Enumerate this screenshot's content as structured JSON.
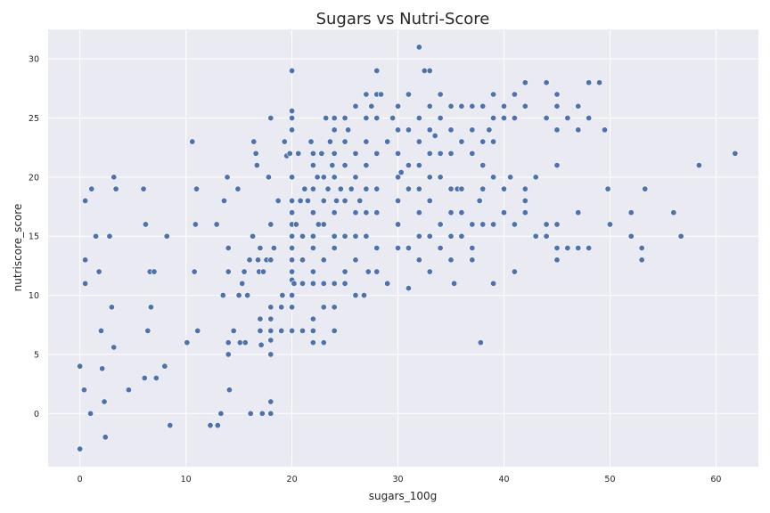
{
  "chart_data": {
    "type": "scatter",
    "title": "Sugars vs Nutri-Score",
    "xlabel": "sugars_100g",
    "ylabel": "nutriscore_score",
    "xlim": [
      -3,
      64
    ],
    "ylim": [
      -4.5,
      32.5
    ],
    "xticks": [
      0,
      10,
      20,
      30,
      40,
      50,
      60
    ],
    "yticks": [
      0,
      5,
      10,
      15,
      20,
      25,
      30
    ],
    "grid": true,
    "style": {
      "background": "#eaeaf2",
      "marker_color": "#4c72b0"
    },
    "series": [
      {
        "points": [
          [
            0,
            -3
          ],
          [
            0,
            4
          ],
          [
            0.4,
            2
          ],
          [
            0.5,
            18
          ],
          [
            0.5,
            13
          ],
          [
            0.5,
            11
          ],
          [
            1,
            0
          ],
          [
            1.1,
            19
          ],
          [
            1.5,
            15
          ],
          [
            1.8,
            12
          ],
          [
            2,
            7
          ],
          [
            2.1,
            3.8
          ],
          [
            2.3,
            1
          ],
          [
            2.4,
            -2
          ],
          [
            2.8,
            15
          ],
          [
            3,
            9
          ],
          [
            3.2,
            20
          ],
          [
            3.2,
            5.6
          ],
          [
            3.4,
            19
          ],
          [
            4.6,
            2
          ],
          [
            6,
            19
          ],
          [
            6.1,
            3
          ],
          [
            6.2,
            16
          ],
          [
            6.4,
            7
          ],
          [
            6.6,
            12
          ],
          [
            6.7,
            9
          ],
          [
            7,
            12
          ],
          [
            7.2,
            3
          ],
          [
            8,
            4
          ],
          [
            8.2,
            15
          ],
          [
            8.5,
            -1
          ],
          [
            10.1,
            6
          ],
          [
            10.6,
            23
          ],
          [
            10.8,
            12
          ],
          [
            10.9,
            16
          ],
          [
            11,
            19
          ],
          [
            11.1,
            7
          ],
          [
            12.3,
            -1
          ],
          [
            12.9,
            16
          ],
          [
            13,
            -1
          ],
          [
            13.3,
            0
          ],
          [
            13.5,
            10
          ],
          [
            13.6,
            18
          ],
          [
            13.9,
            20
          ],
          [
            14,
            14
          ],
          [
            14,
            12
          ],
          [
            14,
            6
          ],
          [
            14,
            5
          ],
          [
            14.1,
            2
          ],
          [
            14.5,
            7
          ],
          [
            14.9,
            19
          ],
          [
            15,
            10
          ],
          [
            15.1,
            6
          ],
          [
            15.3,
            11
          ],
          [
            15.5,
            12
          ],
          [
            15.6,
            6
          ],
          [
            15.8,
            10
          ],
          [
            16,
            13
          ],
          [
            16.1,
            0
          ],
          [
            16.3,
            15
          ],
          [
            16.4,
            23
          ],
          [
            16.6,
            22
          ],
          [
            16.7,
            21
          ],
          [
            16.8,
            13
          ],
          [
            16.9,
            12
          ],
          [
            17,
            14
          ],
          [
            17,
            8
          ],
          [
            17,
            7
          ],
          [
            17.1,
            5.8
          ],
          [
            17.2,
            0
          ],
          [
            17.3,
            12
          ],
          [
            17.6,
            13
          ],
          [
            17.8,
            20
          ],
          [
            18,
            25
          ],
          [
            18,
            16
          ],
          [
            18,
            13
          ],
          [
            18,
            9
          ],
          [
            18,
            8
          ],
          [
            18,
            7
          ],
          [
            18,
            6.2
          ],
          [
            18,
            5
          ],
          [
            18,
            1
          ],
          [
            18,
            0
          ],
          [
            18.3,
            14
          ],
          [
            18.7,
            18
          ],
          [
            19,
            9
          ],
          [
            19,
            7
          ],
          [
            19.1,
            10
          ],
          [
            19.3,
            23
          ],
          [
            19.5,
            21.8
          ],
          [
            19.8,
            22
          ],
          [
            20,
            29
          ],
          [
            20,
            25.6
          ],
          [
            20,
            25
          ],
          [
            20,
            24
          ],
          [
            20,
            20
          ],
          [
            20,
            18
          ],
          [
            20,
            17
          ],
          [
            20,
            16
          ],
          [
            20,
            15
          ],
          [
            20,
            14
          ],
          [
            20,
            13
          ],
          [
            20,
            12
          ],
          [
            20,
            11.3
          ],
          [
            20,
            10
          ],
          [
            20,
            9
          ],
          [
            20,
            7
          ],
          [
            20.2,
            11
          ],
          [
            20.4,
            16
          ],
          [
            20.6,
            22
          ],
          [
            20.8,
            18
          ],
          [
            21,
            15
          ],
          [
            21,
            13
          ],
          [
            21,
            11
          ],
          [
            21,
            7
          ],
          [
            21.2,
            19
          ],
          [
            21.5,
            18
          ],
          [
            21.8,
            23
          ],
          [
            22,
            22
          ],
          [
            22,
            21
          ],
          [
            22,
            19
          ],
          [
            22,
            17
          ],
          [
            22,
            15
          ],
          [
            22,
            14
          ],
          [
            22,
            12
          ],
          [
            22,
            11
          ],
          [
            22,
            8
          ],
          [
            22,
            7
          ],
          [
            22,
            6
          ],
          [
            22.4,
            20
          ],
          [
            22.5,
            16
          ],
          [
            22.8,
            22
          ],
          [
            23,
            20
          ],
          [
            23,
            18
          ],
          [
            23,
            16
          ],
          [
            23,
            13
          ],
          [
            23,
            11
          ],
          [
            23,
            9
          ],
          [
            23,
            6
          ],
          [
            23.2,
            25
          ],
          [
            23.4,
            19
          ],
          [
            23.6,
            23
          ],
          [
            23.8,
            21
          ],
          [
            24,
            25
          ],
          [
            24,
            24
          ],
          [
            24,
            22
          ],
          [
            24,
            20
          ],
          [
            24,
            17
          ],
          [
            24,
            15
          ],
          [
            24,
            14
          ],
          [
            24,
            11
          ],
          [
            24,
            9
          ],
          [
            24,
            7
          ],
          [
            24.2,
            18
          ],
          [
            24.6,
            19
          ],
          [
            25,
            25
          ],
          [
            25,
            23
          ],
          [
            25,
            21
          ],
          [
            25,
            18
          ],
          [
            25,
            15
          ],
          [
            25,
            12
          ],
          [
            25,
            11
          ],
          [
            25.3,
            24
          ],
          [
            25.6,
            19
          ],
          [
            26,
            26
          ],
          [
            26,
            22
          ],
          [
            26,
            20
          ],
          [
            26,
            17
          ],
          [
            26,
            15
          ],
          [
            26,
            13
          ],
          [
            26,
            10
          ],
          [
            26.4,
            18
          ],
          [
            26.8,
            10
          ],
          [
            27,
            27
          ],
          [
            27,
            25
          ],
          [
            27,
            23
          ],
          [
            27,
            21
          ],
          [
            27,
            19
          ],
          [
            27,
            17
          ],
          [
            27,
            15
          ],
          [
            27.2,
            12
          ],
          [
            27.5,
            26
          ],
          [
            28,
            29
          ],
          [
            28,
            27
          ],
          [
            28,
            25
          ],
          [
            28,
            22
          ],
          [
            28,
            19
          ],
          [
            28,
            17
          ],
          [
            28,
            14
          ],
          [
            28,
            12
          ],
          [
            28.4,
            27
          ],
          [
            29,
            23
          ],
          [
            29,
            11
          ],
          [
            29.5,
            25
          ],
          [
            30,
            26
          ],
          [
            30,
            24
          ],
          [
            30,
            22
          ],
          [
            30,
            20
          ],
          [
            30,
            18
          ],
          [
            30,
            16
          ],
          [
            30,
            14
          ],
          [
            30.3,
            20.4
          ],
          [
            31,
            27
          ],
          [
            31,
            24
          ],
          [
            31,
            21
          ],
          [
            31,
            19
          ],
          [
            31,
            14
          ],
          [
            31,
            10.6
          ],
          [
            32,
            31
          ],
          [
            32,
            25
          ],
          [
            32,
            23
          ],
          [
            32,
            21
          ],
          [
            32,
            19
          ],
          [
            32,
            17
          ],
          [
            32,
            15
          ],
          [
            32,
            13
          ],
          [
            32.5,
            29
          ],
          [
            33,
            29
          ],
          [
            33,
            26
          ],
          [
            33,
            24
          ],
          [
            33,
            22
          ],
          [
            33,
            20
          ],
          [
            33,
            18
          ],
          [
            33,
            15
          ],
          [
            33,
            12
          ],
          [
            33.5,
            23.5
          ],
          [
            34,
            27
          ],
          [
            34,
            25
          ],
          [
            34,
            22
          ],
          [
            34,
            20
          ],
          [
            34,
            16
          ],
          [
            34,
            14
          ],
          [
            35,
            26
          ],
          [
            35,
            24
          ],
          [
            35,
            22
          ],
          [
            35,
            19
          ],
          [
            35,
            17
          ],
          [
            35,
            15
          ],
          [
            35,
            13
          ],
          [
            35.3,
            11
          ],
          [
            35.6,
            19
          ],
          [
            36,
            26
          ],
          [
            36,
            23
          ],
          [
            36,
            19
          ],
          [
            36,
            17
          ],
          [
            36,
            15
          ],
          [
            37,
            26
          ],
          [
            37,
            24
          ],
          [
            37,
            22
          ],
          [
            37,
            16
          ],
          [
            37,
            14
          ],
          [
            37,
            13
          ],
          [
            37.7,
            18
          ],
          [
            37.8,
            6
          ],
          [
            38,
            26
          ],
          [
            38,
            23
          ],
          [
            38,
            21
          ],
          [
            38,
            19
          ],
          [
            38,
            16
          ],
          [
            38.6,
            24
          ],
          [
            39,
            27
          ],
          [
            39,
            25
          ],
          [
            39,
            23
          ],
          [
            39,
            20
          ],
          [
            39,
            16
          ],
          [
            39,
            11
          ],
          [
            40,
            26
          ],
          [
            40,
            25
          ],
          [
            40,
            19
          ],
          [
            40,
            17
          ],
          [
            40.6,
            20
          ],
          [
            41,
            27
          ],
          [
            41,
            25
          ],
          [
            41,
            16
          ],
          [
            41,
            12
          ],
          [
            42,
            28
          ],
          [
            42,
            26
          ],
          [
            42,
            19
          ],
          [
            42,
            18
          ],
          [
            42,
            17
          ],
          [
            43,
            20
          ],
          [
            43,
            15
          ],
          [
            44,
            28
          ],
          [
            44,
            25
          ],
          [
            44,
            16
          ],
          [
            44,
            15
          ],
          [
            45,
            27
          ],
          [
            45,
            26
          ],
          [
            45,
            24
          ],
          [
            45,
            21
          ],
          [
            45,
            16
          ],
          [
            45,
            14
          ],
          [
            45,
            13
          ],
          [
            46,
            25
          ],
          [
            46,
            14
          ],
          [
            47,
            26
          ],
          [
            47,
            24
          ],
          [
            47,
            17
          ],
          [
            47,
            14
          ],
          [
            48,
            28
          ],
          [
            48,
            25
          ],
          [
            48,
            14
          ],
          [
            49,
            28
          ],
          [
            49.5,
            24
          ],
          [
            49.8,
            19
          ],
          [
            50,
            16
          ],
          [
            52,
            17
          ],
          [
            52,
            15
          ],
          [
            53,
            14
          ],
          [
            53,
            13
          ],
          [
            53.3,
            19
          ],
          [
            56,
            17
          ],
          [
            56.7,
            15
          ],
          [
            58.4,
            21
          ],
          [
            61.8,
            22
          ]
        ]
      }
    ]
  }
}
